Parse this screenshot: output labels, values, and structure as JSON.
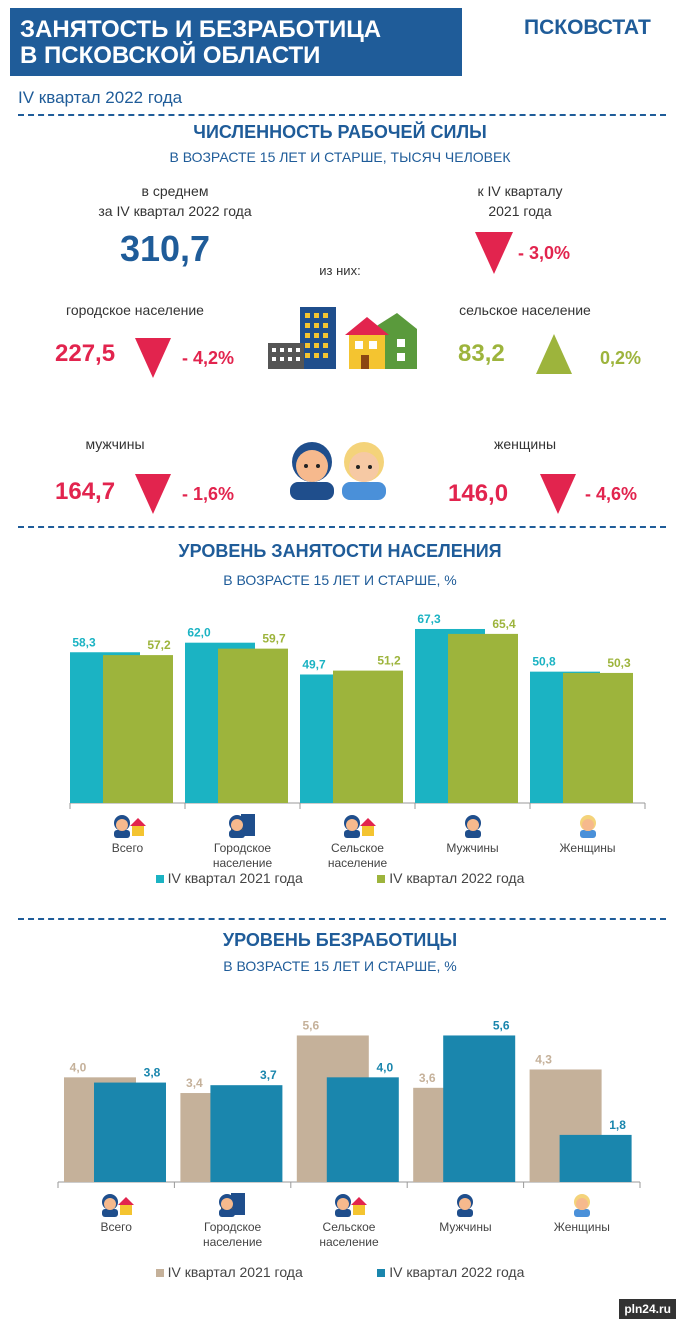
{
  "header": {
    "title_line1": "ЗАНЯТОСТЬ И БЕЗРАБОТИЦА",
    "title_line2": "В ПСКОВСКОЙ ОБЛАСТИ",
    "brand": "ПСКОВСТАТ",
    "period": "IV квартал 2022 года"
  },
  "labor": {
    "title": "ЧИСЛЕННОСТЬ РАБОЧЕЙ СИЛЫ",
    "subtitle": "В ВОЗРАСТЕ 15 ЛЕТ И СТАРШЕ, ТЫСЯЧ ЧЕЛОВЕК",
    "avg_label_1": "в среднем",
    "avg_label_2": "за IV квартал 2022 года",
    "avg_value": "310,7",
    "cmp_label_1": "к IV кварталу",
    "cmp_label_2": "2021 года",
    "cmp_delta": "- 3,0%",
    "of_them": "из них:",
    "urban_label": "городское население",
    "urban_value": "227,5",
    "urban_delta": "- 4,2%",
    "rural_label": "сельское население",
    "rural_value": "83,2",
    "rural_delta": "0,2%",
    "men_label": "мужчины",
    "men_value": "164,7",
    "men_delta": "- 1,6%",
    "women_label": "женщины",
    "women_value": "146,0",
    "women_delta": "- 4,6%"
  },
  "colors": {
    "primary": "#1f5c99",
    "red": "#e2244e",
    "green": "#9db43c",
    "teal": "#1bb3c3",
    "olive": "#9db43c",
    "beige": "#c5b19a",
    "blue": "#1a86ad"
  },
  "chart_data": [
    {
      "type": "bar",
      "title": "УРОВЕНЬ ЗАНЯТОСТИ НАСЕЛЕНИЯ",
      "subtitle": "В ВОЗРАСТЕ 15 ЛЕТ И СТАРШЕ, %",
      "categories": [
        "Всего",
        "Городское население",
        "Сельское население",
        "Мужчины",
        "Женщины"
      ],
      "series": [
        {
          "name": "IV квартал 2021 года",
          "values": [
            58.3,
            62.0,
            49.7,
            67.3,
            50.8
          ],
          "labels": [
            "58,3",
            "62,0",
            "49,7",
            "67,3",
            "50,8"
          ],
          "color": "#1bb3c3"
        },
        {
          "name": "IV квартал 2022 года",
          "values": [
            57.2,
            59.7,
            51.2,
            65.4,
            50.3
          ],
          "labels": [
            "57,2",
            "59,7",
            "51,2",
            "65,4",
            "50,3"
          ],
          "color": "#9db43c"
        }
      ],
      "ylim": [
        0,
        70
      ]
    },
    {
      "type": "bar",
      "title": "УРОВЕНЬ БЕЗРАБОТИЦЫ",
      "subtitle": "В ВОЗРАСТЕ 15 ЛЕТ И СТАРШЕ, %",
      "categories": [
        "Всего",
        "Городское население",
        "Сельское население",
        "Мужчины",
        "Женщины"
      ],
      "series": [
        {
          "name": "IV квартал 2021 года",
          "values": [
            4.0,
            3.4,
            5.6,
            3.6,
            4.3
          ],
          "labels": [
            "4,0",
            "3,4",
            "5,6",
            "3,6",
            "4,3"
          ],
          "color": "#c5b19a"
        },
        {
          "name": "IV квартал 2022 года",
          "values": [
            3.8,
            3.7,
            4.0,
            5.6,
            1.8
          ],
          "labels": [
            "3,8",
            "3,7",
            "4,0",
            "5,6",
            "1,8"
          ],
          "color": "#1a86ad"
        }
      ],
      "ylim": [
        0,
        6
      ]
    }
  ],
  "watermark": "pln24.ru"
}
